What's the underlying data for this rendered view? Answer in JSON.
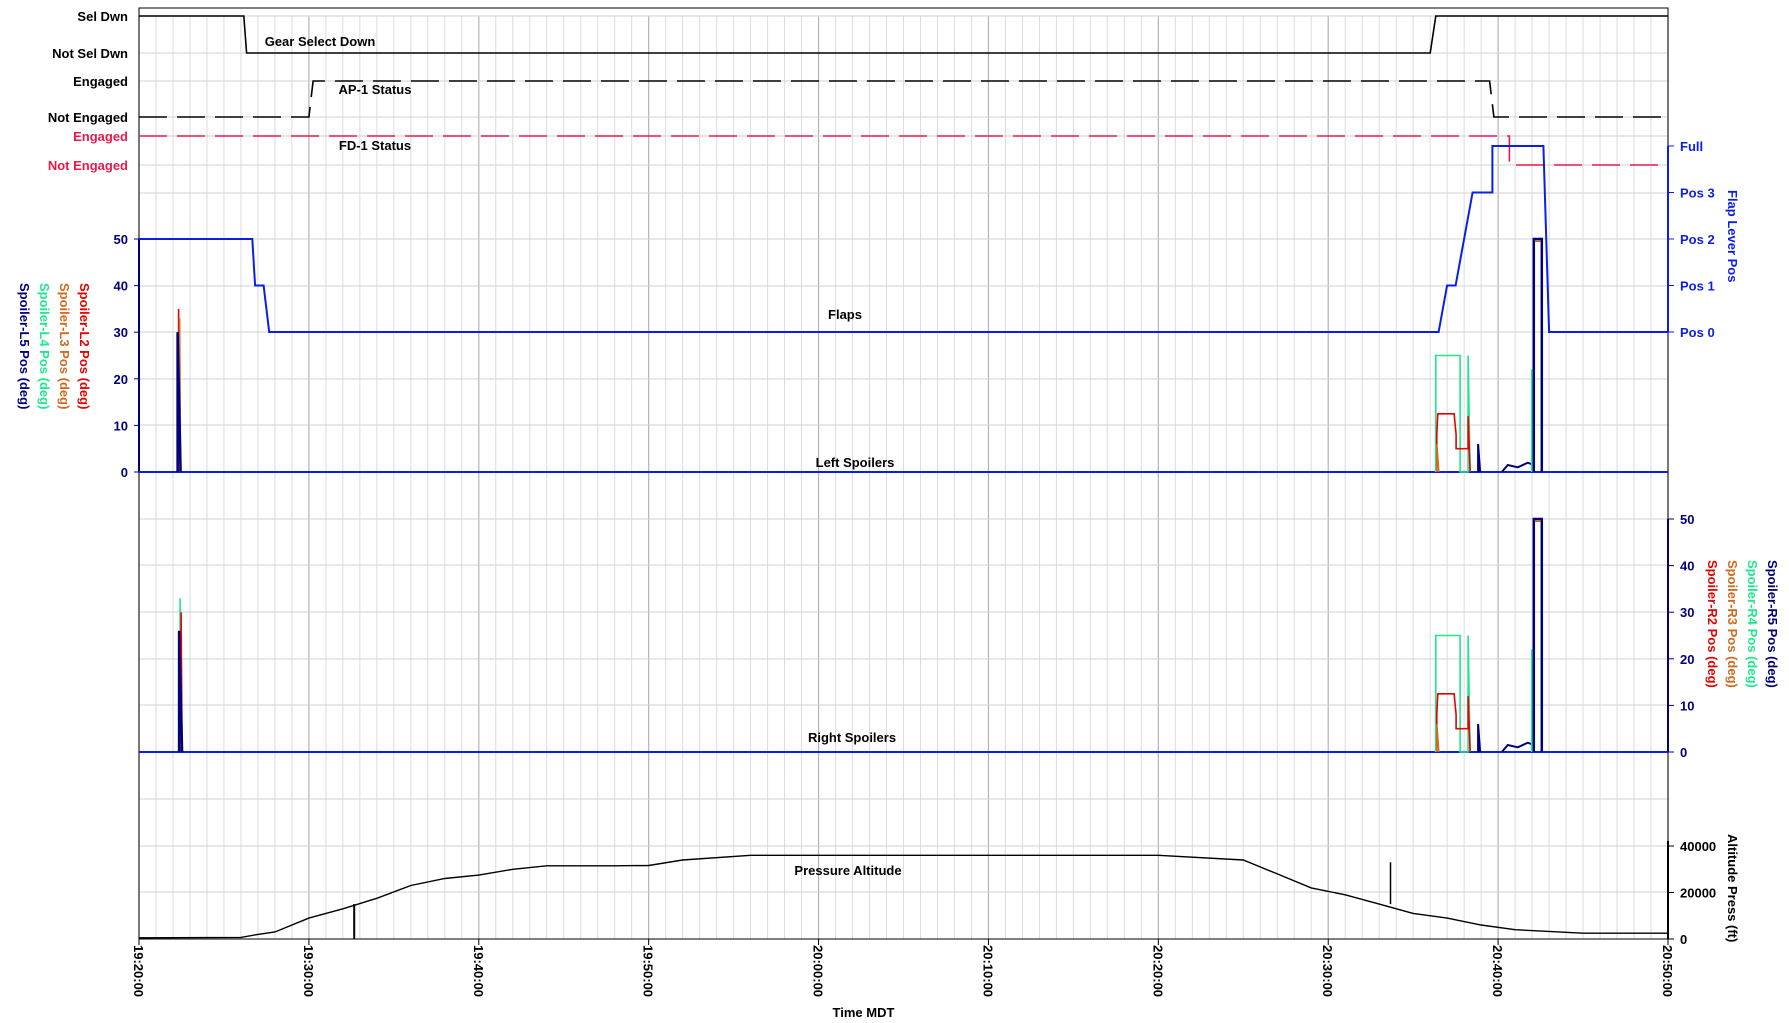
{
  "chart_data": {
    "type": "line",
    "xlabel": "Time MDT",
    "x_range": [
      "19:20:00",
      "20:50:00"
    ],
    "x_ticks": [
      "19:20:00",
      "19:30:00",
      "19:40:00",
      "19:50:00",
      "20:00:00",
      "20:10:00",
      "20:20:00",
      "20:30:00",
      "20:40:00",
      "20:50:00"
    ],
    "grid": true,
    "colors": {
      "black": "#000000",
      "fd": "#e8194b",
      "flap_lever": "#0a1ee8",
      "navy": "#00007a",
      "l2": "#e80000",
      "l3": "#d2691e",
      "l4": "#1ee88c",
      "grid": "#c8c8c8"
    },
    "panels": {
      "gear": {
        "trace_label": "Gear Select Down",
        "states": [
          "Sel Dwn",
          "Not Sel Dwn"
        ],
        "series": [
          {
            "x": [
              "19:20:00",
              "19:26:10",
              "19:26:20",
              "20:36:00",
              "20:36:20",
              "20:50:00"
            ],
            "y": [
              "Sel Dwn",
              "Sel Dwn",
              "Not Sel Dwn",
              "Not Sel Dwn",
              "Sel Dwn",
              "Sel Dwn"
            ]
          }
        ]
      },
      "ap1": {
        "trace_label": "AP-1 Status",
        "states": [
          "Engaged",
          "Not Engaged"
        ],
        "series": [
          {
            "x": [
              "19:20:00",
              "19:30:00",
              "19:30:15",
              "20:39:30",
              "20:39:45",
              "20:50:00"
            ],
            "y": [
              "Not Engaged",
              "Not Engaged",
              "Engaged",
              "Engaged",
              "Not Engaged",
              "Not Engaged"
            ]
          }
        ]
      },
      "fd1": {
        "trace_label": "FD-1 Status",
        "states": [
          "Engaged",
          "Not Engaged"
        ],
        "series": [
          {
            "x": [
              "19:20:00",
              "20:40:40",
              "20:40:40",
              "20:50:00"
            ],
            "y": [
              "Engaged",
              "Engaged",
              "Not Engaged",
              "Not Engaged"
            ]
          }
        ]
      },
      "flaps": {
        "trace_label": "Flaps",
        "left_axis_labels": [
          "Spoiler-L2 Pos (deg)",
          "Spoiler-L3 Pos (deg)",
          "Spoiler-L4 Pos (deg)",
          "Spoiler-L5 Pos (deg)"
        ],
        "left_ylim": [
          0,
          50
        ],
        "left_ticks": [
          "0",
          "10",
          "20",
          "30",
          "40",
          "50"
        ],
        "right_ylabel": "Flap Lever Pos",
        "right_ticks": [
          "Pos 0",
          "Pos 1",
          "Pos 2",
          "Pos 3",
          "Full"
        ],
        "flap_lever": {
          "x": [
            "19:20:00",
            "19:26:40",
            "19:26:50",
            "19:27:20",
            "19:27:40",
            "20:36:30",
            "20:37:00",
            "20:37:30",
            "20:38:00",
            "20:38:30",
            "20:39:00",
            "20:39:40",
            "20:39:40",
            "20:41:30",
            "20:41:30",
            "20:42:40",
            "20:43:00",
            "20:44:00",
            "20:50:00"
          ],
          "y": [
            2,
            2,
            1,
            1,
            0,
            0,
            1,
            1,
            2,
            3,
            3,
            3,
            4,
            4,
            4,
            4,
            0,
            0,
            0
          ]
        },
        "left_spoilers_label": "Left Spoilers"
      },
      "right_spoilers": {
        "trace_label": "Right Spoilers",
        "right_axis_labels": [
          "Spoiler-R5 Pos (deg)",
          "Spoiler-R4 Pos (deg)",
          "Spoiler-R3 Pos (deg)",
          "Spoiler-R2 Pos (deg)"
        ],
        "ylim": [
          0,
          50
        ],
        "ticks": [
          "0",
          "10",
          "20",
          "30",
          "40",
          "50"
        ]
      },
      "altitude": {
        "trace_label": "Pressure Altitude",
        "ylabel": "Altitude Press (ft)",
        "ylim": [
          0,
          40000
        ],
        "ticks": [
          "0",
          "20000",
          "40000"
        ],
        "series": [
          {
            "x": [
              "19:20:00",
              "19:26:00",
              "19:27:00",
              "19:28:00",
              "19:30:00",
              "19:32:00",
              "19:34:00",
              "19:36:00",
              "19:38:00",
              "19:40:00",
              "19:42:00",
              "19:44:00",
              "19:48:00",
              "19:50:00",
              "19:52:00",
              "19:56:00",
              "20:02:00",
              "20:20:00",
              "20:25:00",
              "20:27:00",
              "20:29:00",
              "20:31:00",
              "20:33:00",
              "20:35:00",
              "20:37:00",
              "20:39:00",
              "20:41:00",
              "20:45:00",
              "20:50:00"
            ],
            "y": [
              500,
              700,
              2000,
              3000,
              9000,
              13000,
              17500,
              23000,
              26000,
              27500,
              30000,
              31500,
              31500,
              31600,
              34000,
              36000,
              36000,
              36000,
              34000,
              28000,
              22000,
              19000,
              15000,
              11000,
              9000,
              6000,
              4000,
              2500,
              2500
            ]
          }
        ]
      }
    },
    "spoiler_events": {
      "takeoff_left": {
        "time": "19:22:20",
        "l2_peak": 35,
        "l3_peak": 33,
        "l5_peak": 30
      },
      "takeoff_right": {
        "time": "19:22:25",
        "r2_peak": 33,
        "r5_peak": 26
      },
      "descent_block": {
        "start": "20:36:20",
        "end": "20:38:00",
        "l4_level": 25,
        "l2_level": 12.5
      },
      "ground": {
        "time": "20:42:20",
        "level": 50
      }
    }
  }
}
